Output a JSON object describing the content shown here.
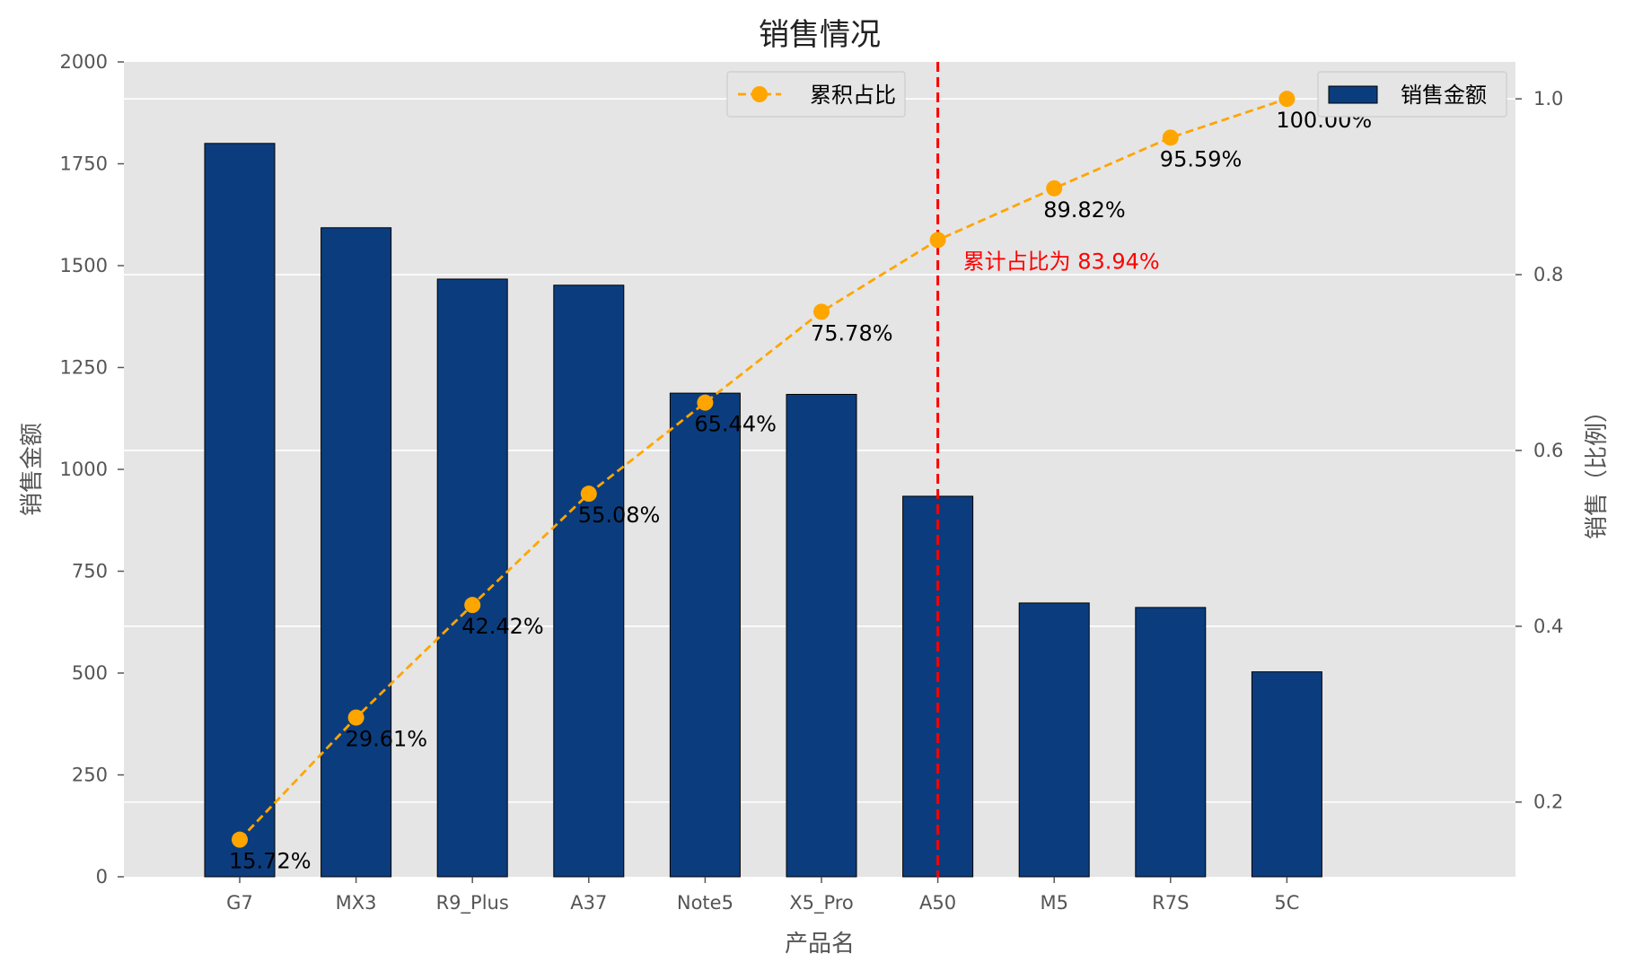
{
  "chart_data": {
    "type": "bar",
    "title": "销售情况",
    "xlabel": "产品名",
    "ylabel": "销售金额",
    "y2label": "销售（比例）",
    "categories": [
      "G7",
      "MX3",
      "R9_Plus",
      "A37",
      "Note5",
      "X5_Pro",
      "A50",
      "M5",
      "R7S",
      "5C"
    ],
    "series": [
      {
        "name": "销售金额",
        "kind": "bar",
        "axis": "left",
        "color": "#0b3d7e",
        "values": [
          1800,
          1593,
          1467,
          1452,
          1187,
          1184,
          934,
          672,
          661,
          503
        ]
      },
      {
        "name": "累积占比",
        "kind": "line",
        "axis": "right",
        "color": "#ffa500",
        "style": "dashed",
        "marker": "circle",
        "values": [
          0.1572,
          0.2961,
          0.4242,
          0.5508,
          0.6544,
          0.7578,
          0.8394,
          0.8982,
          0.9559,
          1.0
        ],
        "labels": [
          "15.72%",
          "29.61%",
          "42.42%",
          "55.08%",
          "65.44%",
          "75.78%",
          "",
          "89.82%",
          "95.59%",
          "100.00%"
        ]
      }
    ],
    "ylim": [
      0,
      2000
    ],
    "yticks": [
      0,
      250,
      500,
      750,
      1000,
      1250,
      1500,
      1750,
      2000
    ],
    "y2lim": [
      0.115,
      1.042
    ],
    "y2ticks": [
      0.2,
      0.4,
      0.6,
      0.8,
      1.0
    ],
    "y2tick_labels": [
      "0.2",
      "0.4",
      "0.6",
      "0.8",
      "1.0"
    ],
    "grid": true,
    "background": "#e5e5e5",
    "reference_line": {
      "category": "A50",
      "color": "#ff0000",
      "style": "dashed",
      "annotation": "累计占比为 83.94%",
      "annotation_color": "#ff0000"
    },
    "legends": [
      {
        "series": "累积占比",
        "placement": "upper-center-right"
      },
      {
        "series": "销售金额",
        "placement": "upper-right"
      }
    ]
  }
}
